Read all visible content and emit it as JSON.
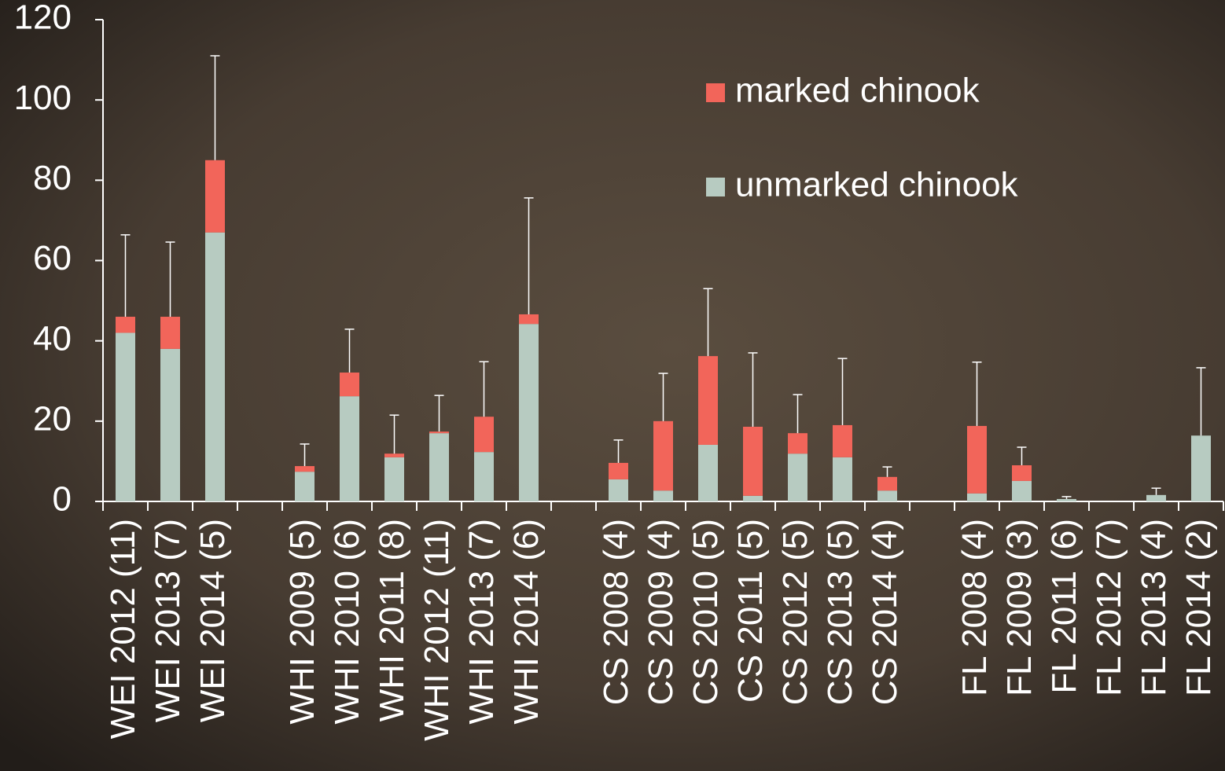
{
  "chart_data": {
    "type": "bar",
    "stacked": true,
    "categories": [
      "WEI 2012 (11)",
      "WEI 2013 (7)",
      "WEI 2014 (5)",
      null,
      "WHI 2009 (5)",
      "WHI 2010 (6)",
      "WHI 2011 (8)",
      "WHI 2012 (11)",
      "WHI 2013 (7)",
      "WHI 2014 (6)",
      null,
      "CS 2008 (4)",
      "CS 2009 (4)",
      "CS 2010 (5)",
      "CS 2011 (5)",
      "CS 2012 (5)",
      "CS 2013 (5)",
      "CS 2014 (4)",
      null,
      "FL 2008 (4)",
      "FL 2009 (3)",
      "FL 2011 (6)",
      "FL 2012 (7)",
      "FL 2013 (4)",
      "FL 2014 (2)"
    ],
    "series": [
      {
        "name": "unmarked chinook",
        "color": "#b7cbc1",
        "values": [
          42,
          38,
          67,
          null,
          7.4,
          26.2,
          11,
          17,
          12.3,
          44.2,
          null,
          5.5,
          2.7,
          14.1,
          1.4,
          11.9,
          11,
          2.7,
          null,
          2,
          5.1,
          0.6,
          0,
          1.6,
          16.4
        ]
      },
      {
        "name": "marked chinook",
        "color": "#f2655a",
        "values": [
          4,
          8,
          18,
          null,
          1.4,
          5.9,
          0.9,
          0.4,
          8.8,
          2.4,
          null,
          4.1,
          17.3,
          22.1,
          17.2,
          5.1,
          8,
          3.4,
          null,
          16.8,
          3.9,
          0,
          0,
          0,
          0
        ]
      }
    ],
    "errors": [
      20.4,
      18.6,
      26,
      null,
      5.5,
      10.8,
      9.6,
      9,
      13.7,
      29,
      null,
      5.7,
      11.9,
      16.8,
      18.4,
      9.6,
      16.6,
      2.5,
      null,
      15.9,
      4.5,
      0.6,
      0,
      1.7,
      16.9
    ],
    "ylim": [
      0,
      120
    ],
    "yticks": [
      0,
      20,
      40,
      60,
      80,
      100,
      120
    ],
    "grid": false,
    "legend": "top-right"
  }
}
